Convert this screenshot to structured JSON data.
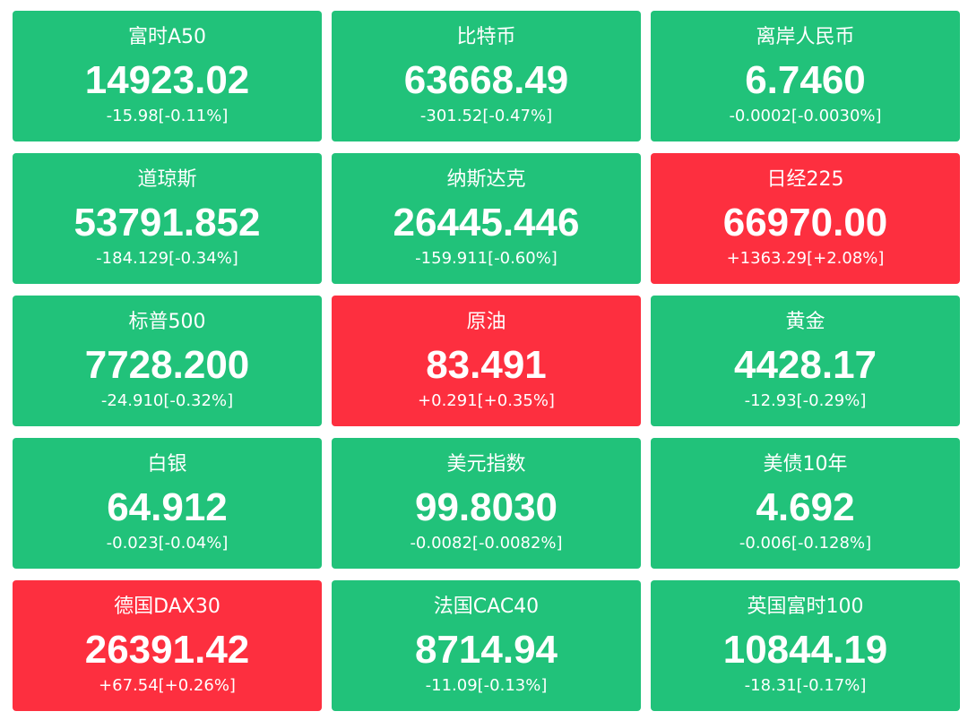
{
  "tiles": [
    {
      "name": "富时A50",
      "price": "14923.02",
      "change": "-15.98[-0.11%]",
      "color": "#21c27a"
    },
    {
      "name": "比特币",
      "price": "63668.49",
      "change": "-301.52[-0.47%]",
      "color": "#21c27a"
    },
    {
      "name": "离岸人民币",
      "price": "6.7460",
      "change": "-0.0002[-0.0030%]",
      "color": "#21c27a"
    },
    {
      "name": "道琼斯",
      "price": "53791.852",
      "change": "-184.129[-0.34%]",
      "color": "#21c27a"
    },
    {
      "name": "纳斯达克",
      "price": "26445.446",
      "change": "-159.911[-0.60%]",
      "color": "#21c27a"
    },
    {
      "name": "日经225",
      "price": "66970.00",
      "change": "+1363.29[+2.08%]",
      "color": "#fd2f3f"
    },
    {
      "name": "标普500",
      "price": "7728.200",
      "change": "-24.910[-0.32%]",
      "color": "#21c27a"
    },
    {
      "name": "原油",
      "price": "83.491",
      "change": "+0.291[+0.35%]",
      "color": "#fd2f3f"
    },
    {
      "name": "黄金",
      "price": "4428.17",
      "change": "-12.93[-0.29%]",
      "color": "#21c27a"
    },
    {
      "name": "白银",
      "price": "64.912",
      "change": "-0.023[-0.04%]",
      "color": "#21c27a"
    },
    {
      "name": "美元指数",
      "price": "99.8030",
      "change": "-0.0082[-0.0082%]",
      "color": "#21c27a"
    },
    {
      "name": "美债10年",
      "price": "4.692",
      "change": "-0.006[-0.128%]",
      "color": "#21c27a"
    },
    {
      "name": "德国DAX30",
      "price": "26391.42",
      "change": "+67.54[+0.26%]",
      "color": "#fd2f3f"
    },
    {
      "name": "法国CAC40",
      "price": "8714.94",
      "change": "-11.09[-0.13%]",
      "color": "#21c27a"
    },
    {
      "name": "英国富时100",
      "price": "10844.19",
      "change": "-18.31[-0.17%]",
      "color": "#21c27a"
    }
  ]
}
